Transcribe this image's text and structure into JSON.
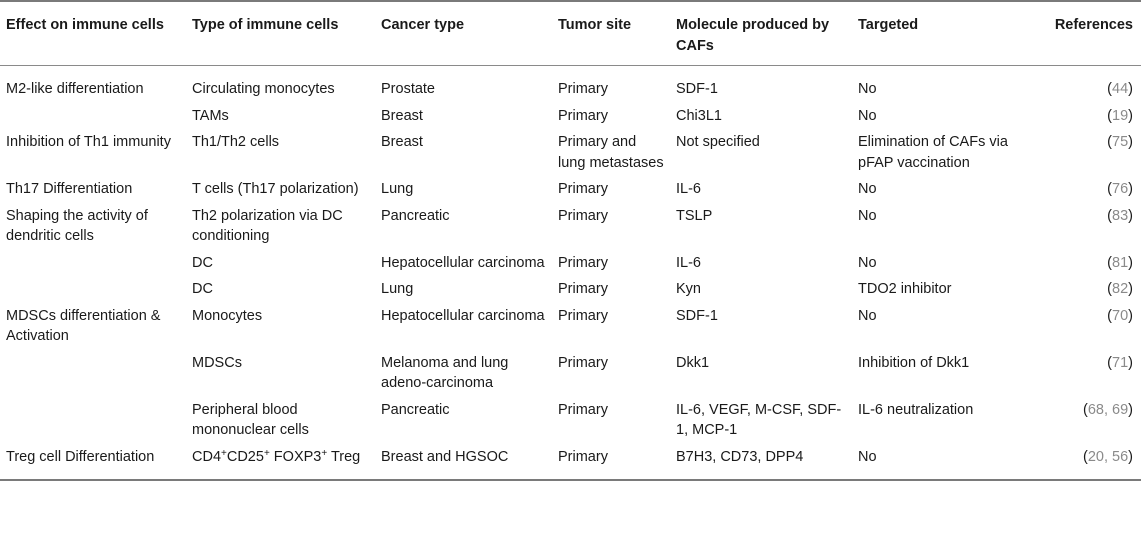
{
  "headers": {
    "effect": "Effect on immune cells",
    "type": "Type of immune cells",
    "cancer": "Cancer type",
    "site": "Tumor site",
    "molecule": "Molecule produced by CAFs",
    "targeted": "Targeted",
    "refs": "References"
  },
  "rows": [
    {
      "effect": "M2-like differentiation",
      "type": "Circulating monocytes",
      "cancer": "Prostate",
      "site": "Primary",
      "molecule": "SDF-1",
      "targeted": "No",
      "refs": "44"
    },
    {
      "effect": "",
      "type": "TAMs",
      "cancer": "Breast",
      "site": "Primary",
      "molecule": "Chi3L1",
      "targeted": "No",
      "refs": "19"
    },
    {
      "effect": "Inhibition of Th1 immunity",
      "type": "Th1/Th2 cells",
      "cancer": "Breast",
      "site": "Primary and lung metastases",
      "molecule": "Not specified",
      "targeted": "Elimination of CAFs via pFAP vaccination",
      "refs": "75"
    },
    {
      "effect": "Th17 Differentiation",
      "type": "T cells (Th17 polarization)",
      "cancer": "Lung",
      "site": "Primary",
      "molecule": "IL-6",
      "targeted": "No",
      "refs": "76"
    },
    {
      "effect": "Shaping the activity of dendritic cells",
      "type": "Th2 polarization via DC conditioning",
      "cancer": "Pancreatic",
      "site": "Primary",
      "molecule": "TSLP",
      "targeted": "No",
      "refs": "83"
    },
    {
      "effect": "",
      "type": "DC",
      "cancer": "Hepatocellular carcinoma",
      "site": "Primary",
      "molecule": "IL-6",
      "targeted": "No",
      "refs": "81"
    },
    {
      "effect": "",
      "type": "DC",
      "cancer": "Lung",
      "site": "Primary",
      "molecule": "Kyn",
      "targeted": "TDO2 inhibitor",
      "refs": "82"
    },
    {
      "effect": "MDSCs differentiation & Activation",
      "type": "Monocytes",
      "cancer": "Hepatocellular carcinoma",
      "site": "Primary",
      "molecule": "SDF-1",
      "targeted": "No",
      "refs": "70"
    },
    {
      "effect": "",
      "type": "MDSCs",
      "cancer": "Melanoma and lung adeno-carcinoma",
      "site": "Primary",
      "molecule": "Dkk1",
      "targeted": "Inhibition of Dkk1",
      "refs": "71"
    },
    {
      "effect": "",
      "type": "Peripheral blood mononuclear cells",
      "cancer": "Pancreatic",
      "site": "Primary",
      "molecule": "IL-6, VEGF, M-CSF, SDF-1, MCP-1",
      "targeted": "IL-6 neutralization",
      "refs": "68, 69"
    },
    {
      "effect": "Treg cell Differentiation",
      "type_parts": [
        "CD4",
        "+",
        "CD25",
        "+",
        " FOXP3",
        "+",
        " Treg"
      ],
      "cancer": "Breast and HGSOC",
      "site": "Primary",
      "molecule": "B7H3, CD73, DPP4",
      "targeted": "No",
      "refs": "20, 56"
    }
  ]
}
